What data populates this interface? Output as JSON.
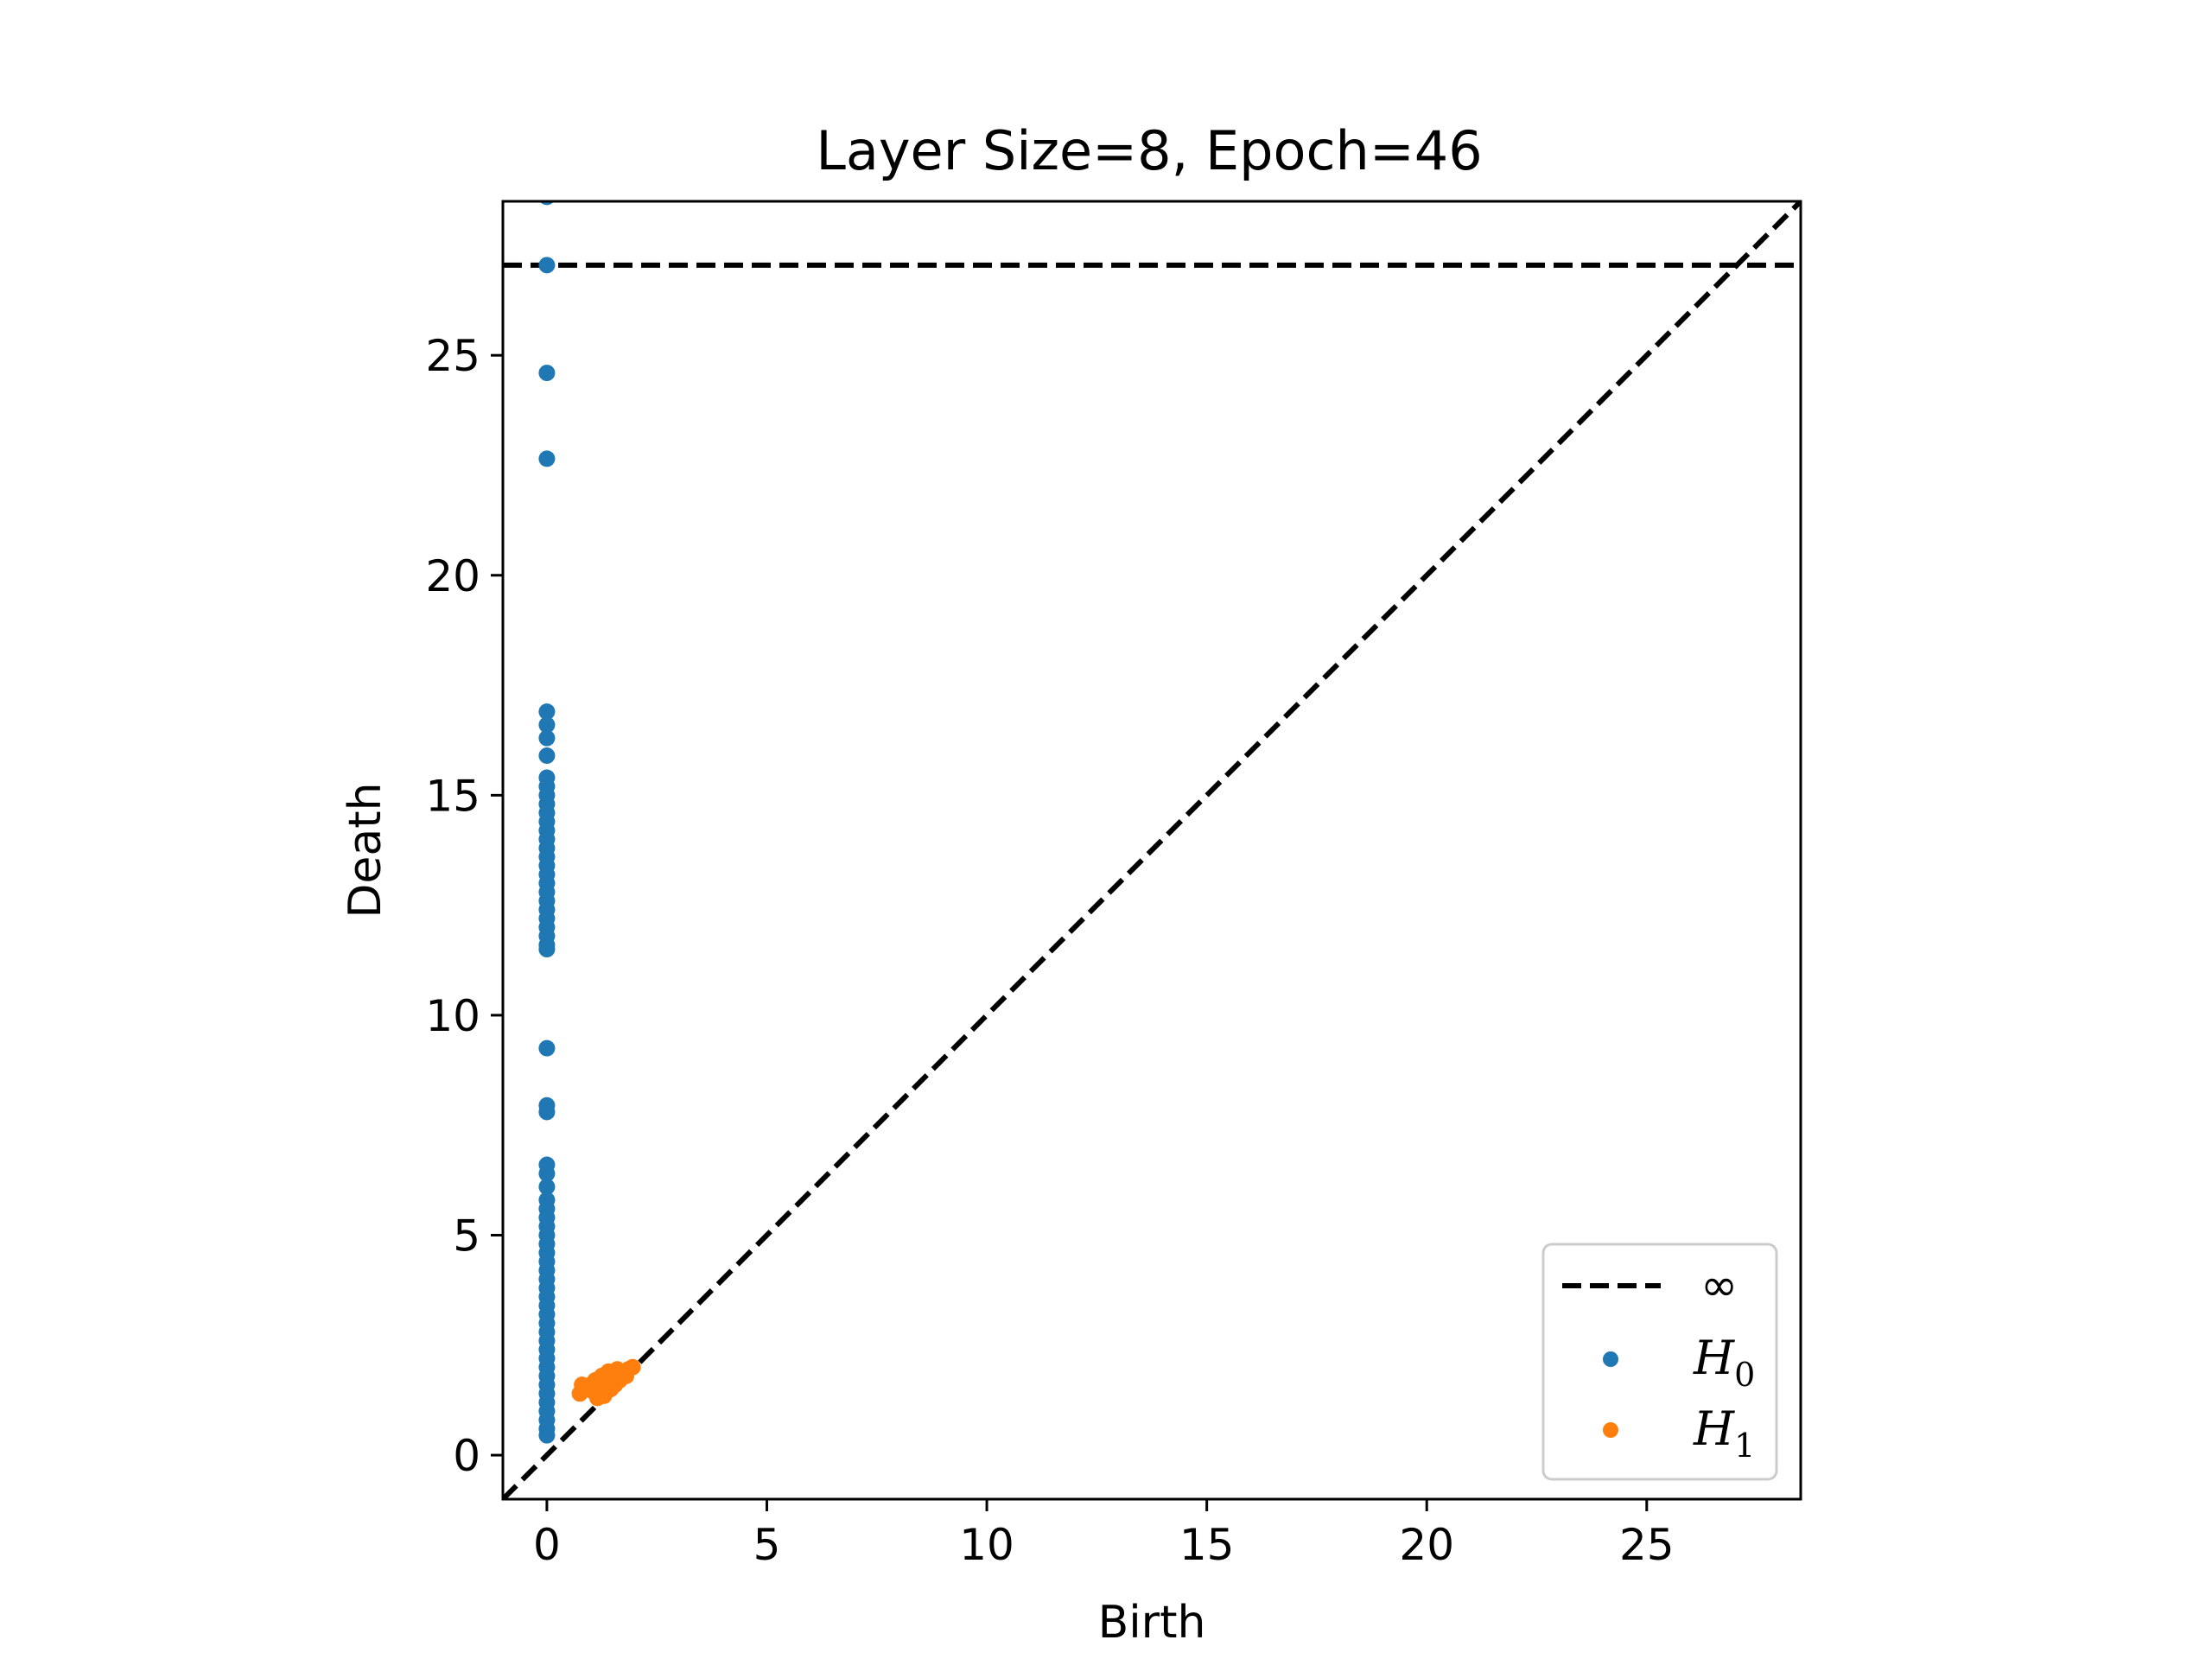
{
  "chart_data": {
    "type": "scatter",
    "title": "Layer Size=8, Epoch=46",
    "xlabel": "Birth",
    "ylabel": "Death",
    "xlim": [
      -1,
      28.5
    ],
    "ylim": [
      -1,
      28.5
    ],
    "xticks": [
      0,
      5,
      10,
      15,
      20,
      25
    ],
    "yticks": [
      0,
      5,
      10,
      15,
      20,
      25
    ],
    "tick_labels": {
      "x": [
        "0",
        "5",
        "10",
        "15",
        "20",
        "25"
      ],
      "y": [
        "0",
        "5",
        "10",
        "15",
        "20",
        "25"
      ]
    },
    "infinity_line": {
      "y": 27.05,
      "label": "∞",
      "style": "dashed",
      "color": "#000000"
    },
    "diagonal": {
      "style": "dashed",
      "color": "#000000"
    },
    "legend": {
      "placement": "lower-right",
      "entries": [
        "∞",
        "H0",
        "H1"
      ]
    },
    "grid": false,
    "series": [
      {
        "name": "H0",
        "color": "#1f77b4",
        "points": [
          [
            0,
            28.6
          ],
          [
            0,
            27.05
          ],
          [
            0,
            24.6
          ],
          [
            0,
            22.65
          ],
          [
            0,
            16.9
          ],
          [
            0,
            16.6
          ],
          [
            0,
            16.3
          ],
          [
            0,
            15.9
          ],
          [
            0,
            15.4
          ],
          [
            0,
            15.2
          ],
          [
            0,
            15.0
          ],
          [
            0,
            14.8
          ],
          [
            0,
            14.6
          ],
          [
            0,
            14.4
          ],
          [
            0,
            14.2
          ],
          [
            0,
            14.0
          ],
          [
            0,
            13.8
          ],
          [
            0,
            13.6
          ],
          [
            0,
            13.4
          ],
          [
            0,
            13.2
          ],
          [
            0,
            13.0
          ],
          [
            0,
            12.8
          ],
          [
            0,
            12.6
          ],
          [
            0,
            12.4
          ],
          [
            0,
            12.2
          ],
          [
            0,
            12.0
          ],
          [
            0,
            11.8
          ],
          [
            0,
            11.6
          ],
          [
            0,
            11.5
          ],
          [
            0,
            9.25
          ],
          [
            0,
            7.95
          ],
          [
            0,
            7.8
          ],
          [
            0,
            6.6
          ],
          [
            0,
            6.4
          ],
          [
            0,
            6.1
          ],
          [
            0,
            5.8
          ],
          [
            0,
            5.6
          ],
          [
            0,
            5.4
          ],
          [
            0,
            5.2
          ],
          [
            0,
            5.0
          ],
          [
            0,
            4.8
          ],
          [
            0,
            4.6
          ],
          [
            0,
            4.4
          ],
          [
            0,
            4.2
          ],
          [
            0,
            4.0
          ],
          [
            0,
            3.8
          ],
          [
            0,
            3.6
          ],
          [
            0,
            3.4
          ],
          [
            0,
            3.2
          ],
          [
            0,
            3.0
          ],
          [
            0,
            2.8
          ],
          [
            0,
            2.6
          ],
          [
            0,
            2.4
          ],
          [
            0,
            2.2
          ],
          [
            0,
            2.0
          ],
          [
            0,
            1.8
          ],
          [
            0,
            1.6
          ],
          [
            0,
            1.4
          ],
          [
            0,
            1.2
          ],
          [
            0,
            1.0
          ],
          [
            0,
            0.8
          ],
          [
            0,
            0.6
          ],
          [
            0,
            0.45
          ]
        ]
      },
      {
        "name": "H1",
        "color": "#ff7f0e",
        "points": [
          [
            0.75,
            1.4
          ],
          [
            0.8,
            1.6
          ],
          [
            0.9,
            1.5
          ],
          [
            1.0,
            1.6
          ],
          [
            1.05,
            1.45
          ],
          [
            1.1,
            1.7
          ],
          [
            1.2,
            1.55
          ],
          [
            1.25,
            1.8
          ],
          [
            1.3,
            1.4
          ],
          [
            1.35,
            1.65
          ],
          [
            1.4,
            1.9
          ],
          [
            1.45,
            1.5
          ],
          [
            1.5,
            1.75
          ],
          [
            1.55,
            1.6
          ],
          [
            1.6,
            1.95
          ],
          [
            1.65,
            1.7
          ],
          [
            1.7,
            1.85
          ],
          [
            1.8,
            1.8
          ],
          [
            1.85,
            1.95
          ],
          [
            1.95,
            2.0
          ],
          [
            1.3,
            1.35
          ],
          [
            1.15,
            1.3
          ]
        ]
      }
    ]
  }
}
